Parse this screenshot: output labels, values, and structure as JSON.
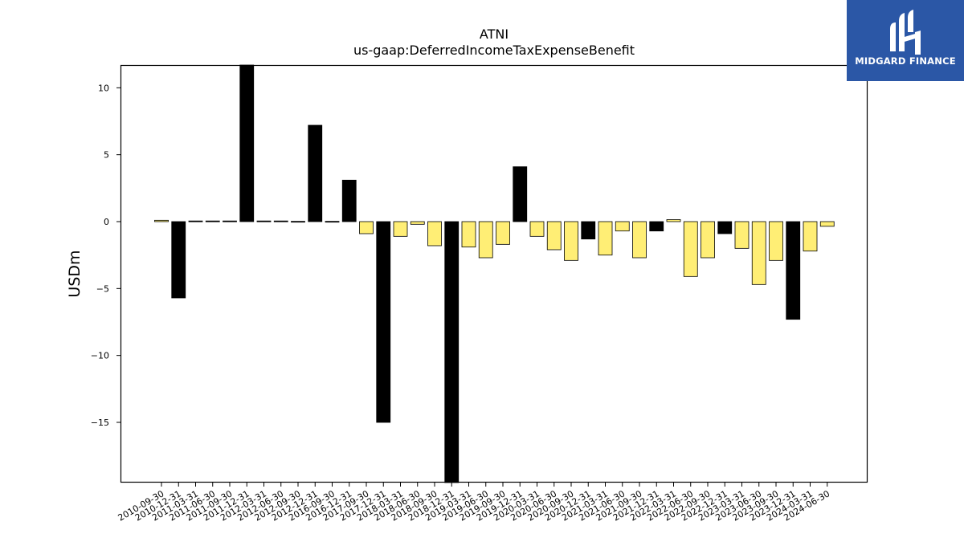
{
  "chart_data": {
    "type": "bar",
    "title": "ATNI",
    "subtitle": "us-gaap:DeferredIncomeTaxExpenseBenefit",
    "xlabel": "",
    "ylabel": "USDm",
    "ylim": [
      -19.5,
      11.7
    ],
    "yticks": [
      10,
      5,
      0,
      -5,
      -10,
      -15
    ],
    "grid": false,
    "categories": [
      "2010-09-30",
      "2010-12-31",
      "2011-03-31",
      "2011-06-30",
      "2011-09-30",
      "2011-12-31",
      "2012-03-31",
      "2012-06-30",
      "2012-09-30",
      "2012-12-31",
      "2016-09-30",
      "2016-12-31",
      "2017-09-30",
      "2017-12-31",
      "2018-03-31",
      "2018-06-30",
      "2018-09-30",
      "2018-12-31",
      "2019-03-31",
      "2019-06-30",
      "2019-09-30",
      "2019-12-31",
      "2020-03-31",
      "2020-06-30",
      "2020-09-30",
      "2020-12-31",
      "2021-03-31",
      "2021-06-30",
      "2021-09-30",
      "2021-12-31",
      "2022-03-31",
      "2022-06-30",
      "2022-09-30",
      "2022-12-31",
      "2023-03-31",
      "2023-06-30",
      "2023-09-30",
      "2023-12-31",
      "2024-03-31",
      "2024-06-30"
    ],
    "values": [
      0.1,
      -5.7,
      0.05,
      0.05,
      0.05,
      11.7,
      0.05,
      0.05,
      0.02,
      7.2,
      0.02,
      3.1,
      -0.9,
      -15.0,
      -1.1,
      -0.2,
      -1.8,
      -19.5,
      -1.9,
      -2.7,
      -1.7,
      4.1,
      -1.1,
      -2.1,
      -2.9,
      -1.3,
      -2.5,
      -0.7,
      -2.7,
      -0.7,
      0.15,
      -4.1,
      -2.7,
      -0.9,
      -2.0,
      -4.7,
      -2.9,
      -7.3,
      -2.2,
      -0.35
    ],
    "bar_colors": [
      "#ffee75",
      "#000000",
      "#000000",
      "#000000",
      "#000000",
      "#000000",
      "#000000",
      "#000000",
      "#000000",
      "#000000",
      "#000000",
      "#000000",
      "#ffee75",
      "#000000",
      "#ffee75",
      "#ffee75",
      "#ffee75",
      "#000000",
      "#ffee75",
      "#ffee75",
      "#ffee75",
      "#000000",
      "#ffee75",
      "#ffee75",
      "#ffee75",
      "#000000",
      "#ffee75",
      "#ffee75",
      "#ffee75",
      "#000000",
      "#ffee75",
      "#ffee75",
      "#ffee75",
      "#000000",
      "#ffee75",
      "#ffee75",
      "#ffee75",
      "#000000",
      "#ffee75",
      "#ffee75"
    ]
  },
  "logo": {
    "text": "MIDGARD FINANCE",
    "background": "#2b57a6"
  }
}
